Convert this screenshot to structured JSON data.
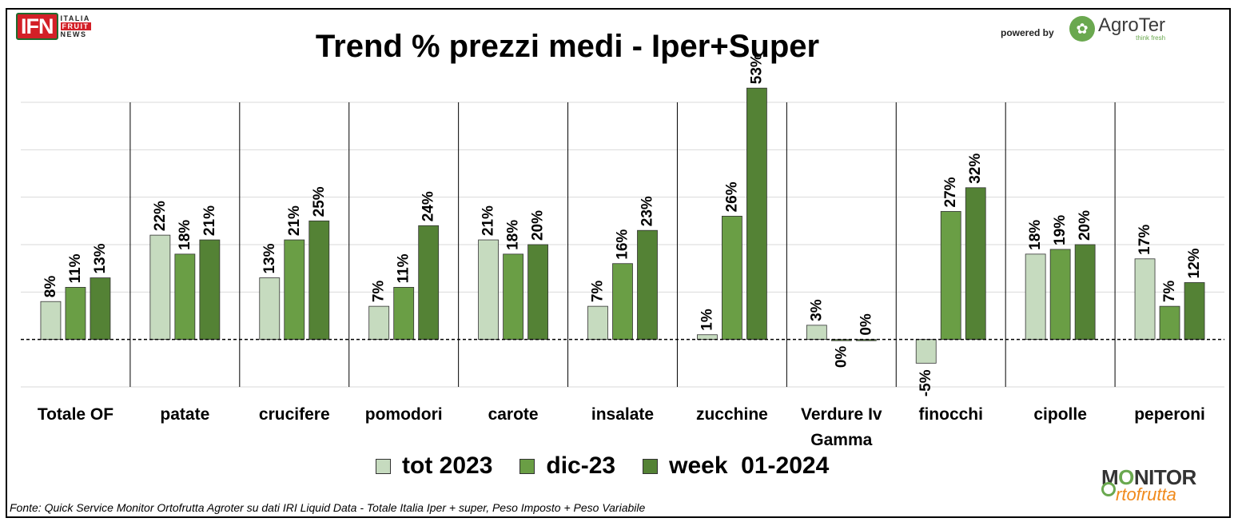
{
  "header": {
    "ifn_logo": {
      "mark": "IFN",
      "line1": "ITALIA",
      "line2": "FRUIT",
      "line3": "NEWS"
    },
    "powered_by": "powered by",
    "agroter_logo": {
      "name": "AgroTer",
      "tagline": "think fresh"
    }
  },
  "chart_data": {
    "type": "bar",
    "title": "Trend % prezzi medi - Iper+Super",
    "xlabel": "",
    "ylabel": "",
    "ylim": [
      -10,
      50
    ],
    "grid": true,
    "legend_position": "bottom",
    "categories": [
      "Totale OF",
      "patate",
      "crucifere",
      "pomodori",
      "carote",
      "insalate",
      "zucchine",
      "Verdure Iv Gamma",
      "finocchi",
      "cipolle",
      "peperoni"
    ],
    "series": [
      {
        "name": "tot 2023",
        "color": "#c6dbbf",
        "values": [
          8,
          22,
          13,
          7,
          21,
          7,
          1,
          3,
          -5,
          18,
          17
        ],
        "labels": [
          "8%",
          "22%",
          "13%",
          "7%",
          "21%",
          "7%",
          "1%",
          "3%",
          "-5%",
          "18%",
          "17%"
        ]
      },
      {
        "name": "dic-23",
        "color": "#6a9e45",
        "values": [
          11,
          18,
          21,
          11,
          18,
          16,
          26,
          0,
          27,
          19,
          7
        ],
        "labels": [
          "11%",
          "18%",
          "21%",
          "11%",
          "18%",
          "16%",
          "26%",
          "0%",
          "27%",
          "19%",
          "7%"
        ]
      },
      {
        "name": "week  01-2024",
        "color": "#548235",
        "values": [
          13,
          21,
          25,
          24,
          20,
          23,
          53,
          0,
          32,
          20,
          12
        ],
        "labels": [
          "13%",
          "21%",
          "25%",
          "24%",
          "20%",
          "23%",
          "53%",
          "0%",
          "32%",
          "20%",
          "12%"
        ]
      }
    ]
  },
  "footer": {
    "source": "Fonte: Quick Service Monitor Ortofrutta Agroter su dati IRI Liquid Data - Totale Italia Iper + super, Peso Imposto + Peso Variabile",
    "monitor_logo": {
      "line1a": "M",
      "line1o": "O",
      "line1b": "NITOR",
      "line2": "rtofrutta"
    }
  }
}
